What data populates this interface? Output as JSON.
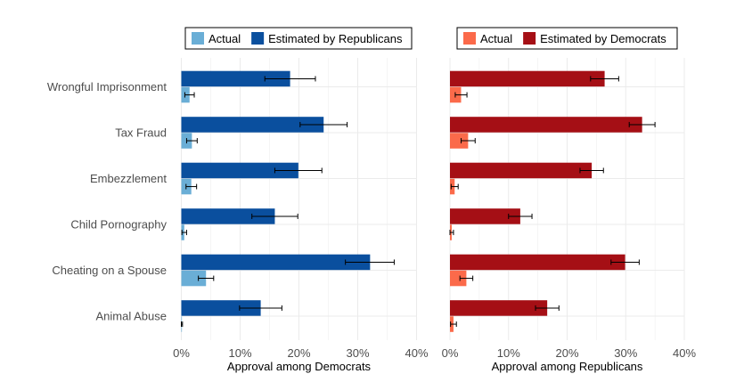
{
  "chart_data": [
    {
      "type": "bar",
      "orientation": "horizontal",
      "categories": [
        "Wrongful Imprisonment",
        "Tax Fraud",
        "Embezzlement",
        "Child Pornography",
        "Cheating on a Spouse",
        "Animal Abuse"
      ],
      "series": [
        {
          "name": "Estimated by Republicans",
          "values": [
            18.5,
            24.2,
            19.9,
            15.9,
            32.1,
            13.5
          ],
          "error_low": [
            14.2,
            20.2,
            15.9,
            12.0,
            27.9,
            9.9
          ],
          "error_high": [
            22.8,
            28.2,
            23.9,
            19.8,
            36.2,
            17.1
          ]
        },
        {
          "name": "Actual",
          "values": [
            1.4,
            1.8,
            1.7,
            0.5,
            4.2,
            0.1
          ],
          "error_low": [
            0.6,
            0.9,
            0.8,
            0.1,
            2.9,
            0.0
          ],
          "error_high": [
            2.2,
            2.7,
            2.6,
            0.9,
            5.5,
            0.2
          ]
        }
      ],
      "colors": [
        "#0a4f9e",
        "#6aaed6"
      ],
      "xlabel": "Approval among Democrats",
      "xlim": [
        0,
        40
      ],
      "xticks": [
        "0%",
        "10%",
        "20%",
        "30%",
        "40%"
      ],
      "legend": {
        "position": "top",
        "entries": [
          "Actual",
          "Estimated by Republicans"
        ]
      },
      "grid": true
    },
    {
      "type": "bar",
      "orientation": "horizontal",
      "categories": [
        "Wrongful Imprisonment",
        "Tax Fraud",
        "Embezzlement",
        "Child Pornography",
        "Cheating on a Spouse",
        "Animal Abuse"
      ],
      "series": [
        {
          "name": "Estimated by Democrats",
          "values": [
            26.4,
            32.8,
            24.2,
            12.0,
            29.9,
            16.6
          ],
          "error_low": [
            24.0,
            30.6,
            22.2,
            10.0,
            27.5,
            14.6
          ],
          "error_high": [
            28.8,
            35.0,
            26.2,
            14.0,
            32.3,
            18.6
          ]
        },
        {
          "name": "Actual",
          "values": [
            1.9,
            3.1,
            0.8,
            0.3,
            2.8,
            0.6
          ],
          "error_low": [
            0.9,
            1.9,
            0.2,
            0.0,
            1.7,
            0.1
          ],
          "error_high": [
            2.9,
            4.3,
            1.4,
            0.6,
            3.9,
            1.1
          ]
        }
      ],
      "colors": [
        "#a50f15",
        "#fb6a4a"
      ],
      "xlabel": "Approval among Republicans",
      "xlim": [
        0,
        40
      ],
      "xticks": [
        "0%",
        "10%",
        "20%",
        "30%",
        "40%"
      ],
      "legend": {
        "position": "top",
        "entries": [
          "Actual",
          "Estimated by Democrats"
        ]
      },
      "grid": true
    }
  ]
}
